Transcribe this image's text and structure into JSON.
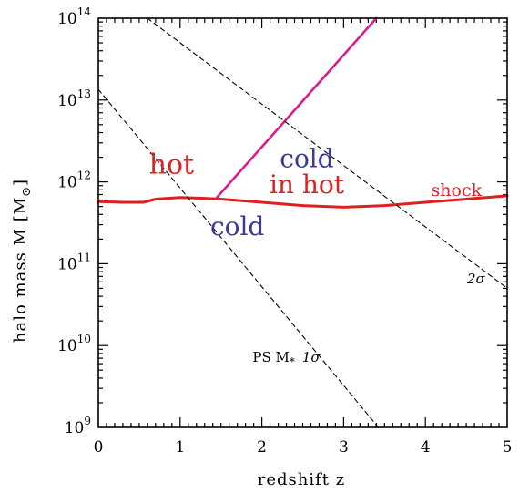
{
  "chart_data": {
    "type": "line",
    "xlabel": "redshift z",
    "ylabel_main": "halo mass M [M",
    "ylabel_sub": "⊙",
    "ylabel_end": "]",
    "xlim": [
      0,
      5
    ],
    "ylim_log10": [
      9,
      14
    ],
    "y_scale": "log",
    "grid": false,
    "x_ticks": [
      {
        "value": 0,
        "label": "0"
      },
      {
        "value": 1,
        "label": "1"
      },
      {
        "value": 2,
        "label": "2"
      },
      {
        "value": 3,
        "label": "3"
      },
      {
        "value": 4,
        "label": "4"
      },
      {
        "value": 5,
        "label": "5"
      }
    ],
    "y_ticks": [
      {
        "value": 9,
        "base": "10",
        "exp": "9"
      },
      {
        "value": 10,
        "base": "10",
        "exp": "10"
      },
      {
        "value": 11,
        "base": "10",
        "exp": "11"
      },
      {
        "value": 12,
        "base": "10",
        "exp": "12"
      },
      {
        "value": 13,
        "base": "10",
        "exp": "13"
      },
      {
        "value": 14,
        "base": "10",
        "exp": "14"
      }
    ],
    "series": [
      {
        "id": "shock",
        "color": "#dd1f1f",
        "style": "solid",
        "x": [
          0,
          0.3,
          0.55,
          0.7,
          1.0,
          1.3,
          1.5,
          2.0,
          2.5,
          3.0,
          3.5,
          4.0,
          4.5,
          5.0
        ],
        "log10_y": [
          11.76,
          11.75,
          11.75,
          11.79,
          11.81,
          11.8,
          11.79,
          11.75,
          11.71,
          11.69,
          11.71,
          11.75,
          11.79,
          11.83
        ]
      },
      {
        "id": "cold-in-hot-boundary",
        "color": "#dd1a8a",
        "style": "solid",
        "x": [
          1.45,
          3.4
        ],
        "log10_y": [
          11.81,
          14.0
        ]
      },
      {
        "id": "PS-1sigma",
        "color": "#000000",
        "style": "dashed",
        "x": [
          0,
          3.45
        ],
        "log10_y": [
          13.13,
          8.97
        ]
      },
      {
        "id": "PS-2sigma",
        "color": "#000000",
        "style": "dashed",
        "x": [
          0.6,
          5.0
        ],
        "log10_y": [
          14.0,
          10.7
        ]
      }
    ],
    "annotations": [
      {
        "id": "hot",
        "text": "hot",
        "color": "#dd2222",
        "x": 0.62,
        "log10_y": 12.1,
        "size": 30,
        "anchor": "start",
        "italic": false
      },
      {
        "id": "cold-top",
        "text": "cold",
        "color": "#3a3a9a",
        "x": 2.55,
        "log10_y": 12.18,
        "size": 28,
        "anchor": "middle",
        "italic": false
      },
      {
        "id": "in-hot",
        "text": "in hot",
        "color": "#dd2222",
        "x": 2.55,
        "log10_y": 11.86,
        "size": 28,
        "anchor": "middle",
        "italic": false
      },
      {
        "id": "shock-label",
        "text": "shock",
        "color": "#dd2222",
        "x": 4.38,
        "log10_y": 11.83,
        "size": 19,
        "anchor": "middle",
        "italic": false
      },
      {
        "id": "cold-bottom",
        "text": "cold",
        "color": "#3a3a9a",
        "x": 1.7,
        "log10_y": 11.35,
        "size": 28,
        "anchor": "middle",
        "italic": false
      },
      {
        "id": "two-sigma",
        "text": "2σ",
        "color": "#000000",
        "x": 4.62,
        "log10_y": 10.76,
        "size": 15,
        "anchor": "middle",
        "italic": true
      }
    ],
    "ps_label": {
      "text_a": "PS M",
      "sub": "*",
      "text_b": "1σ",
      "x": 2.3,
      "log10_y": 9.8
    }
  }
}
